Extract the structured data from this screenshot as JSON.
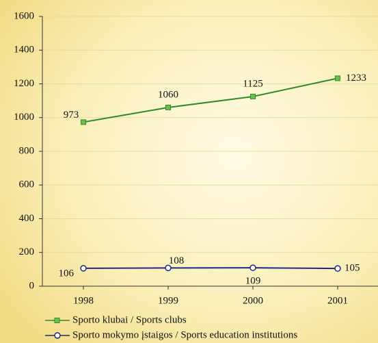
{
  "chart_data": {
    "type": "line",
    "categories": [
      "1998",
      "1999",
      "2000",
      "2001"
    ],
    "series": [
      {
        "name": "Sporto klubai / Sports clubs",
        "color": "#2f8a2a",
        "values": [
          973,
          1060,
          1125,
          1233
        ]
      },
      {
        "name": "Sporto mokymo įstaigos / Sports education institutions",
        "color": "#1c2a80",
        "values": [
          106,
          108,
          109,
          105
        ]
      }
    ],
    "ylim": [
      0,
      1600
    ],
    "yticks": [
      0,
      200,
      400,
      600,
      800,
      1000,
      1200,
      1400,
      1600
    ],
    "grid": true
  }
}
